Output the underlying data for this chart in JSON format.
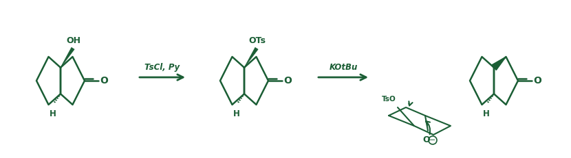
{
  "green": "#1b5e35",
  "fig_width": 8.3,
  "fig_height": 2.31,
  "dpi": 100,
  "arrow1_label": "TsCl, Py",
  "arrow2_label": "KOtBu",
  "mol1_OH": "OH",
  "mol1_H": "H",
  "mol1_O": "O",
  "mol2_OTs": "OTs",
  "mol2_H": "H",
  "mol2_O": "O",
  "mol3_H": "H",
  "mol3_O": "O",
  "mech_TsO": "TsO",
  "mech_O_label": "O"
}
